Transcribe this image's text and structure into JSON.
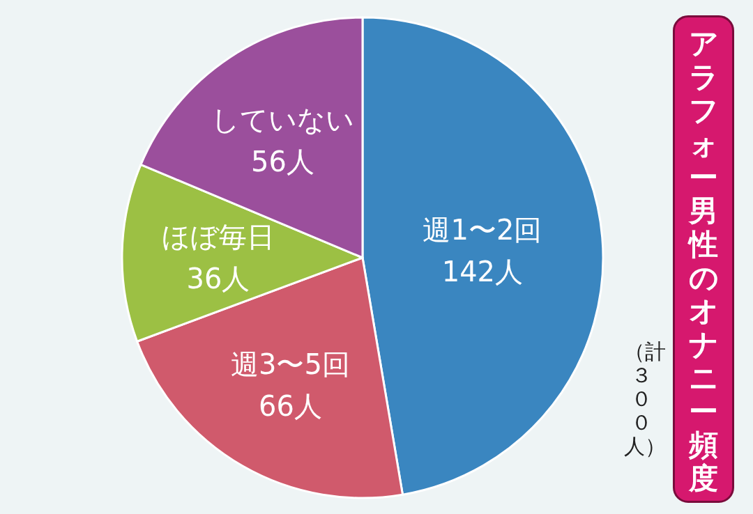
{
  "chart_data": {
    "type": "pie",
    "title": "アラフォー男性のオナニー頻度",
    "subtitle": "（計３００人）",
    "categories": [
      "週1〜2回",
      "週3〜5回",
      "ほぼ毎日",
      "していない"
    ],
    "values": [
      142,
      66,
      36,
      56
    ],
    "value_labels": [
      "142人",
      "66人",
      "36人",
      "56人"
    ],
    "colors": [
      "#3a86c0",
      "#d05a6c",
      "#9cc044",
      "#9b4f9c"
    ]
  }
}
